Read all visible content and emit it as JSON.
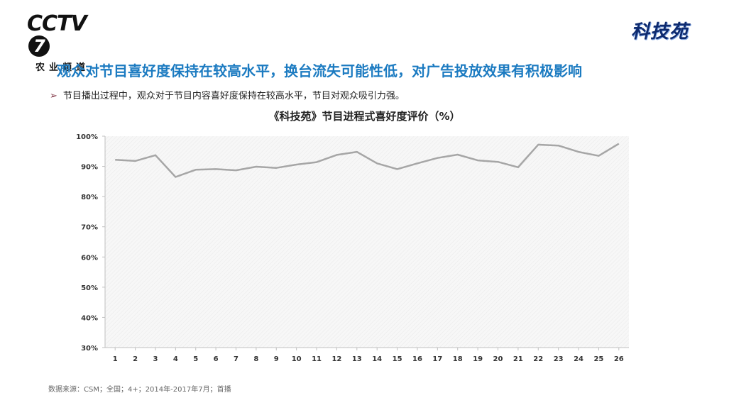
{
  "header": {
    "logo_text": "CCTV",
    "logo_number": "7",
    "channel_name": "农业频道",
    "program_brand": "科技苑"
  },
  "headline": "观众对节目喜好度保持在较高水平，换台流失可能性低，对广告投放效果有积极影响",
  "bullet": {
    "marker": "➢",
    "text": "节目播出过程中，观众对于节目内容喜好度保持在较高水平，节目对观众吸引力强。"
  },
  "chart_data": {
    "type": "line",
    "title": "《科技苑》节目进程式喜好度评价（%）",
    "x": [
      1,
      2,
      3,
      4,
      5,
      6,
      7,
      8,
      9,
      10,
      11,
      12,
      13,
      14,
      15,
      16,
      17,
      18,
      19,
      20,
      21,
      22,
      23,
      24,
      25,
      26
    ],
    "x_tick_labels": [
      "1",
      "2",
      "3",
      "4",
      "5",
      "6",
      "7",
      "8",
      "9",
      "10",
      "11",
      "12",
      "13",
      "14",
      "15",
      "16",
      "17",
      "18",
      "19",
      "20",
      "21",
      "22",
      "23",
      "24",
      "25",
      "26"
    ],
    "series": [
      {
        "values": [
          92.2,
          91.8,
          93.7,
          86.5,
          88.9,
          89.1,
          88.7,
          89.9,
          89.5,
          90.6,
          91.4,
          93.8,
          94.8,
          91.0,
          89.1,
          91.0,
          92.8,
          93.9,
          92.0,
          91.5,
          89.7,
          97.2,
          96.9,
          94.8,
          93.5,
          97.5
        ],
        "color": "#a6a6a6"
      }
    ],
    "ylim": [
      30,
      100
    ],
    "y_ticks": [
      30,
      40,
      50,
      60,
      70,
      80,
      90,
      100
    ],
    "y_tick_labels": [
      "30%",
      "40%",
      "50%",
      "60%",
      "70%",
      "80%",
      "90%",
      "100%"
    ],
    "grid": false,
    "legend": "none",
    "plot_background": "hatched-light-gray"
  },
  "source": "数据来源：CSM；全国；4+；2014年-2017年7月；首播"
}
